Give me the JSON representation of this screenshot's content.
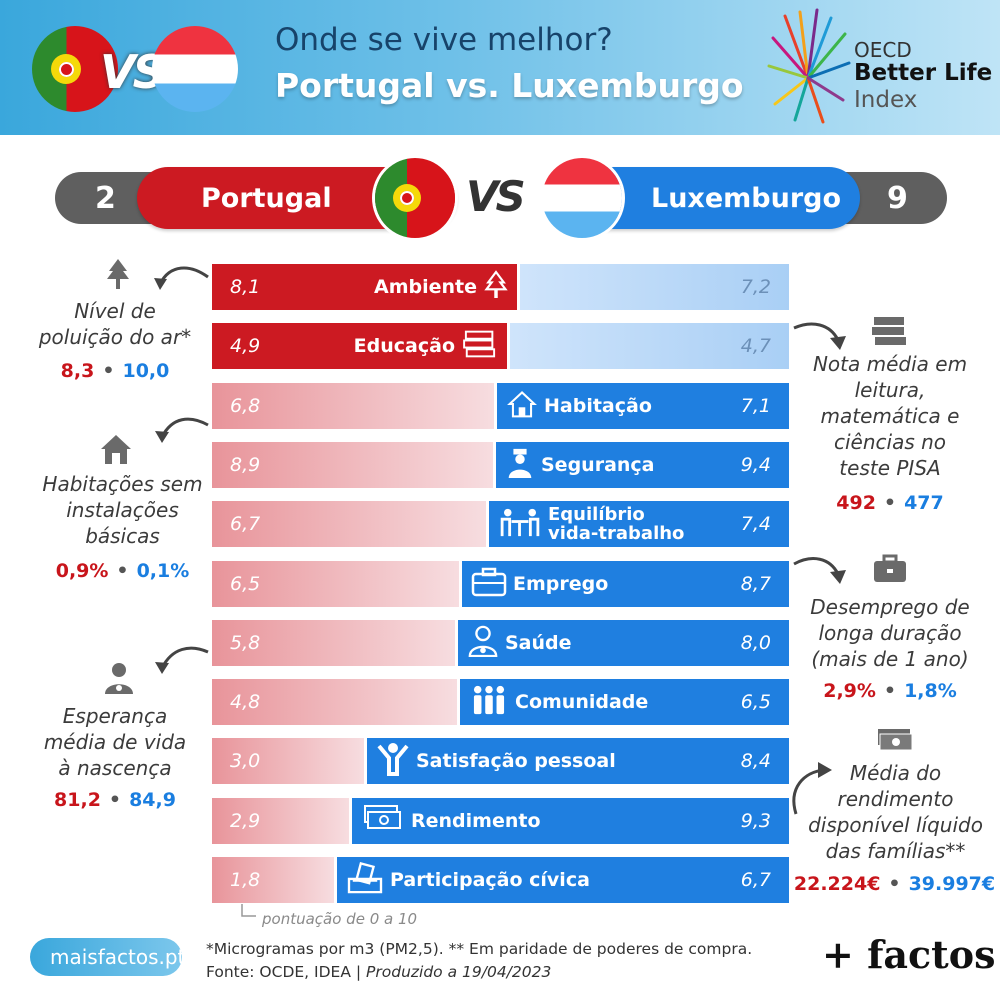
{
  "header": {
    "title_line1": "Onde se vive melhor?",
    "title_line2": "Portugal vs. Luxemburgo",
    "vs": "VS",
    "oecd": {
      "line1": "OECD",
      "line2": "Better Life",
      "line3": "Index"
    }
  },
  "comparison": {
    "left": {
      "name": "Portugal",
      "score": "2"
    },
    "right": {
      "name": "Luxemburgo",
      "score": "9"
    },
    "vs": "VS"
  },
  "rows": [
    {
      "label": "Ambiente",
      "pt": "8,1",
      "lu": "7,2",
      "icon": "tree-icon",
      "winner": "pt"
    },
    {
      "label": "Educação",
      "pt": "4,9",
      "lu": "4,7",
      "icon": "books-icon",
      "winner": "pt"
    },
    {
      "label": "Habitação",
      "pt": "6,8",
      "lu": "7,1",
      "icon": "house-icon",
      "winner": "lu"
    },
    {
      "label": "Segurança",
      "pt": "8,9",
      "lu": "9,4",
      "icon": "police-icon",
      "winner": "lu"
    },
    {
      "label": "Equilíbrio vida-trabalho",
      "label_line1": "Equilíbrio",
      "label_line2": "vida-trabalho",
      "pt": "6,7",
      "lu": "7,4",
      "icon": "work-life-icon",
      "winner": "lu"
    },
    {
      "label": "Emprego",
      "pt": "6,5",
      "lu": "8,7",
      "icon": "briefcase-icon",
      "winner": "lu"
    },
    {
      "label": "Saúde",
      "pt": "5,8",
      "lu": "8,0",
      "icon": "doctor-icon",
      "winner": "lu"
    },
    {
      "label": "Comunidade",
      "pt": "4,8",
      "lu": "6,5",
      "icon": "people-icon",
      "winner": "lu"
    },
    {
      "label": "Satisfação pessoal",
      "pt": "3,0",
      "lu": "8,4",
      "icon": "person-cheer-icon",
      "winner": "lu"
    },
    {
      "label": "Rendimento",
      "pt": "2,9",
      "lu": "9,3",
      "icon": "money-icon",
      "winner": "lu"
    },
    {
      "label": "Participação cívica",
      "pt": "1,8",
      "lu": "6,7",
      "icon": "ballot-icon",
      "winner": "lu"
    }
  ],
  "side_notes": {
    "air": {
      "text1": "Nível de",
      "text2": "poluição do ar*",
      "pt": "8,3",
      "lu": "10,0",
      "icon": "tree-icon"
    },
    "housing": {
      "text1": "Habitações sem",
      "text2": "instalações",
      "text3": "básicas",
      "pt": "0,9%",
      "lu": "0,1%",
      "icon": "house-icon"
    },
    "life": {
      "text1": "Esperança",
      "text2": "média de vida",
      "text3": "à nascença",
      "pt": "81,2",
      "lu": "84,9",
      "icon": "doctor-icon"
    },
    "pisa": {
      "text1": "Nota média em",
      "text2": "leitura,",
      "text3": "matemática e",
      "text4": "ciências no",
      "text5": "teste PISA",
      "pt": "492",
      "lu": "477",
      "icon": "books-icon"
    },
    "unemployment": {
      "text1": "Desemprego de",
      "text2": "longa duração",
      "text3": "(mais de 1 ano)",
      "pt": "2,9%",
      "lu": "1,8%",
      "icon": "briefcase-icon"
    },
    "income": {
      "text1": "Média do",
      "text2": "rendimento",
      "text3": "disponível líquido",
      "text4": "das famílias**",
      "pt": "22.224€",
      "lu": "39.997€",
      "icon": "money-icon"
    }
  },
  "scale_note": "pontuação de 0 a 10",
  "footer": {
    "site": "maisfactos.pt",
    "line1": "*Microgramas por m3 (PM2,5). ** Em paridade de poderes de compra.",
    "source": "Fonte: OCDE, IDEA | ",
    "produced": "Produzido a 19/04/2023",
    "brand": "+ factos"
  },
  "colors": {
    "portugal": "#cc1a22",
    "luxembourg": "#1f7fe0"
  }
}
